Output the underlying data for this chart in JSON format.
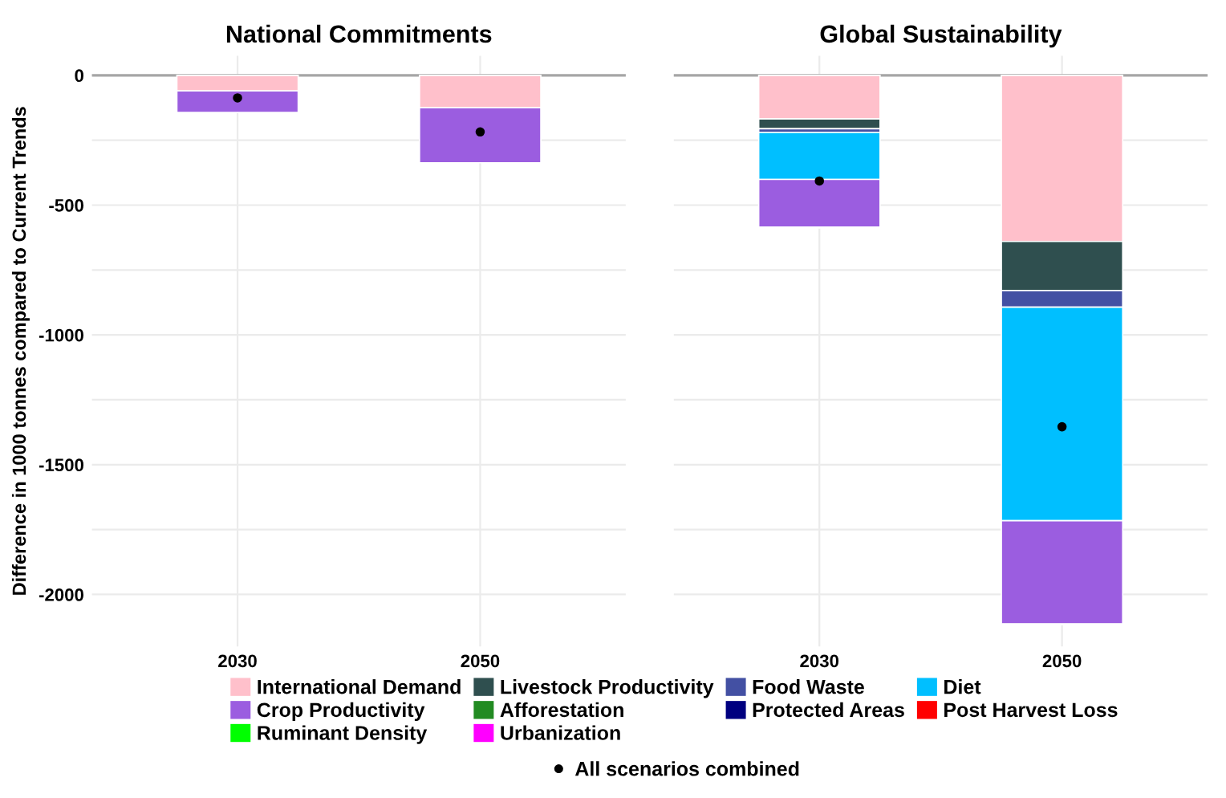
{
  "chart_data": [
    {
      "type": "bar",
      "title": "National Commitments",
      "ylabel": "Difference in 1000 tonnes compared to Current Trends",
      "categories": [
        "2030",
        "2050"
      ],
      "stacked": true,
      "grid": true,
      "ylim": [
        -2200,
        75
      ],
      "yticks": [
        {
          "value": -2000,
          "label": "-2000"
        },
        {
          "value": -1750,
          "label": null
        },
        {
          "value": -1500,
          "label": "-1500"
        },
        {
          "value": -1250,
          "label": null
        },
        {
          "value": -1000,
          "label": "-1000"
        },
        {
          "value": -750,
          "label": null
        },
        {
          "value": -500,
          "label": "-500"
        },
        {
          "value": -250,
          "label": null
        },
        0
      ],
      "ref_lines": [
        {
          "axis": "y",
          "value": 0,
          "color": "#a6a6a6"
        }
      ],
      "series": [
        {
          "color": "#ffc0cb",
          "values": [
            -60,
            -125
          ]
        },
        {
          "color": "#9b5de0",
          "values": [
            -83,
            -212
          ]
        },
        {
          "type": "scatter",
          "marker": "circle",
          "color": "#000000",
          "values": [
            -87,
            -218
          ]
        }
      ]
    },
    {
      "type": "bar",
      "title": "Global Sustainability",
      "categories": [
        "2030",
        "2050"
      ],
      "stacked": true,
      "grid": true,
      "legend": "bottom",
      "tick_labels": "x",
      "ylim": [
        -2200,
        75
      ],
      "yticks": [
        -2000,
        {
          "value": -1750,
          "label": null
        },
        -1500,
        {
          "value": -1250,
          "label": null
        },
        -1000,
        {
          "value": -750,
          "label": null
        },
        -500,
        {
          "value": -250,
          "label": null
        },
        0
      ],
      "ref_lines": [
        {
          "axis": "y",
          "value": 0,
          "color": "#a6a6a6"
        }
      ],
      "series": [
        {
          "name": "International Demand",
          "color": "#ffc0cb",
          "values": [
            -168,
            -640
          ]
        },
        {
          "name": "Livestock Productivity",
          "color": "#2f4f4f",
          "values": [
            -38,
            -189
          ]
        },
        {
          "name": "Food Waste",
          "color": "#4350a3",
          "values": [
            -14,
            -64
          ]
        },
        {
          "name": "Diet",
          "color": "#00bfff",
          "values": [
            -181,
            -823
          ]
        },
        {
          "name": "Crop Productivity",
          "color": "#9b5de0",
          "values": [
            -185,
            -399
          ]
        },
        {
          "name": "Afforestation",
          "color": "#228b22",
          "values": [
            null,
            null
          ]
        },
        {
          "name": "Protected Areas",
          "color": "#000080",
          "values": [
            null,
            null
          ]
        },
        {
          "name": "Post Harvest Loss",
          "color": "#ff0000",
          "values": [
            null,
            null
          ]
        },
        {
          "name": "Ruminant Density",
          "color": "#00ff00",
          "values": [
            null,
            null
          ]
        },
        {
          "name": "Urbanization",
          "color": "#ff00ff",
          "values": [
            null,
            null
          ]
        },
        {
          "name": "All scenarios combined",
          "type": "scatter",
          "marker": "circle",
          "color": "#000000",
          "values": [
            -407,
            -1354
          ]
        }
      ]
    }
  ]
}
